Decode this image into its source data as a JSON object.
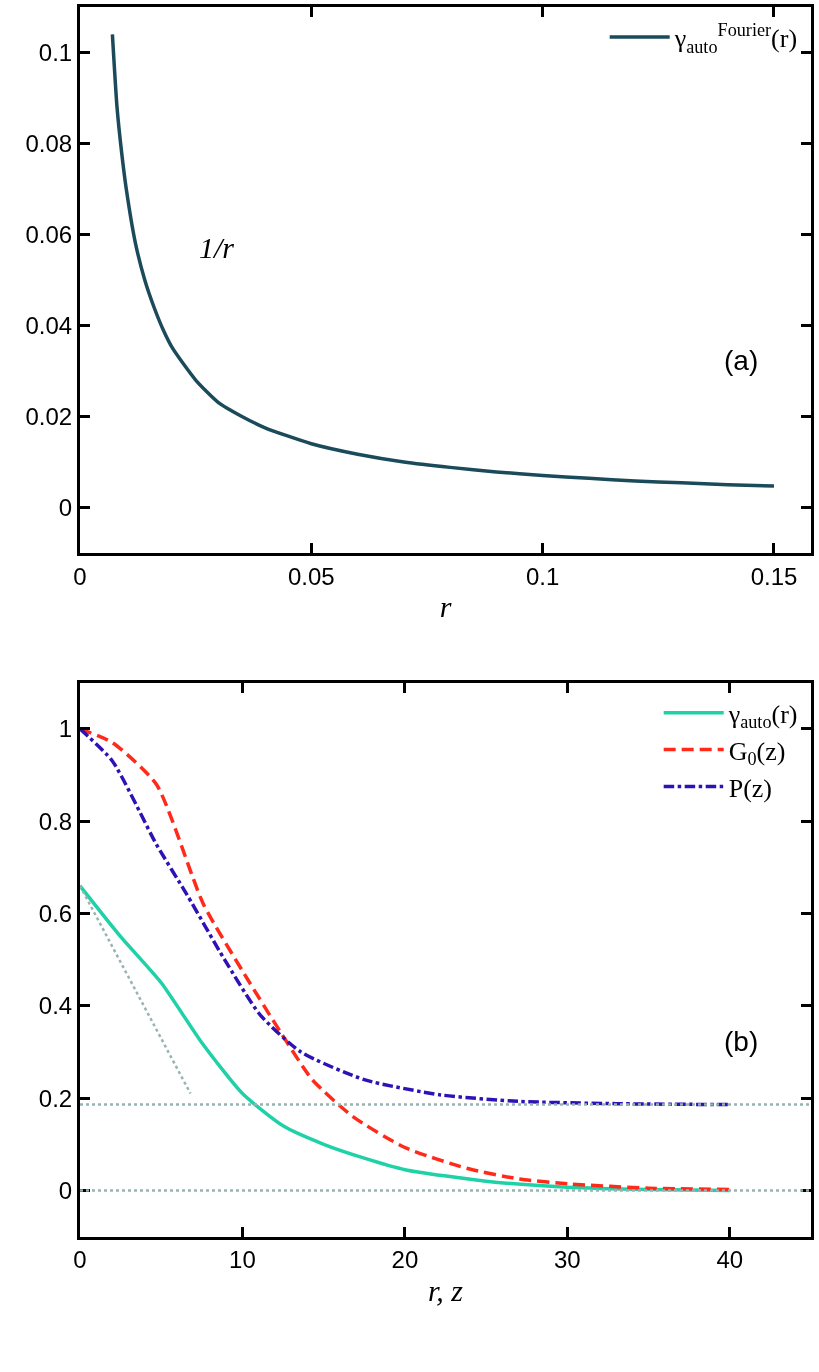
{
  "chart_data": [
    {
      "type": "line",
      "xlabel": "r",
      "xlim": [
        0,
        0.158
      ],
      "ylim": [
        -0.01,
        0.11
      ],
      "xticks": [
        0,
        0.05,
        0.1,
        0.15
      ],
      "yticks": [
        0,
        0.02,
        0.04,
        0.06,
        0.08,
        0.1
      ],
      "legend": "top right",
      "line_style": "solid",
      "annotations": [
        "1/r",
        "(a)"
      ],
      "series": [
        {
          "name": "γ$_{auto}$$^{Fourier}$(r)",
          "color": "#1b4a5a",
          "x": [
            0.007,
            0.008,
            0.009,
            0.01,
            0.012,
            0.014,
            0.016,
            0.018,
            0.02,
            0.025,
            0.03,
            0.035,
            0.04,
            0.05,
            0.06,
            0.07,
            0.08,
            0.09,
            0.1,
            0.11,
            0.12,
            0.13,
            0.14,
            0.15
          ],
          "values": [
            0.104,
            0.088,
            0.078,
            0.07,
            0.058,
            0.05,
            0.044,
            0.039,
            0.035,
            0.028,
            0.023,
            0.02,
            0.0175,
            0.014,
            0.0117,
            0.01,
            0.0088,
            0.0078,
            0.007,
            0.0064,
            0.0058,
            0.0054,
            0.005,
            0.0047
          ]
        }
      ]
    },
    {
      "type": "line",
      "xlabel": "r, z",
      "xlim": [
        0,
        45
      ],
      "ylim": [
        -0.1,
        1.1
      ],
      "xticks": [
        0,
        10,
        20,
        30,
        40
      ],
      "yticks": [
        0,
        0.2,
        0.4,
        0.6,
        0.8,
        1
      ],
      "legend": "top right",
      "annotations": [
        "(b)"
      ],
      "ref_lines": [
        {
          "axis": "y",
          "value": 0.186,
          "color": "#99b3b3",
          "line_style": "dotted"
        },
        {
          "axis": "y",
          "value": 0,
          "color": "#99b3b3",
          "line_style": "dotted"
        }
      ],
      "series": [
        {
          "name": "γ$_{auto}$(r)",
          "color": "#1fd1a6",
          "line_style": "solid",
          "x": [
            0,
            2.5,
            5,
            7.5,
            10,
            12.5,
            15,
            17.5,
            20,
            25,
            30,
            35,
            40
          ],
          "values": [
            0.66,
            0.55,
            0.45,
            0.32,
            0.21,
            0.14,
            0.1,
            0.07,
            0.045,
            0.02,
            0.007,
            0.002,
            0
          ]
        },
        {
          "name": "G$_{0}$(z)",
          "color": "#ff2a1a",
          "line_style": "dashed",
          "x": [
            0,
            2,
            4.7,
            7.6,
            10.1,
            12.4,
            14.3,
            16.8,
            20,
            23.8,
            27,
            30.2,
            35,
            40
          ],
          "values": [
            1,
            0.97,
            0.88,
            0.62,
            0.47,
            0.34,
            0.24,
            0.16,
            0.093,
            0.048,
            0.025,
            0.014,
            0.005,
            0.002
          ]
        },
        {
          "name": "P(z)",
          "color": "#2f12b5",
          "line_style": "dashdot",
          "x": [
            0,
            2,
            4.7,
            6.6,
            8.9,
            11.1,
            13.6,
            17.5,
            22.2,
            27,
            33,
            40
          ],
          "values": [
            1,
            0.93,
            0.75,
            0.64,
            0.5,
            0.38,
            0.3,
            0.24,
            0.207,
            0.193,
            0.188,
            0.186
          ]
        },
        {
          "color": "#99b3b3",
          "line_style": "dotted",
          "x": [
            0,
            6.8
          ],
          "values": [
            0.66,
            0.21
          ]
        }
      ]
    }
  ]
}
